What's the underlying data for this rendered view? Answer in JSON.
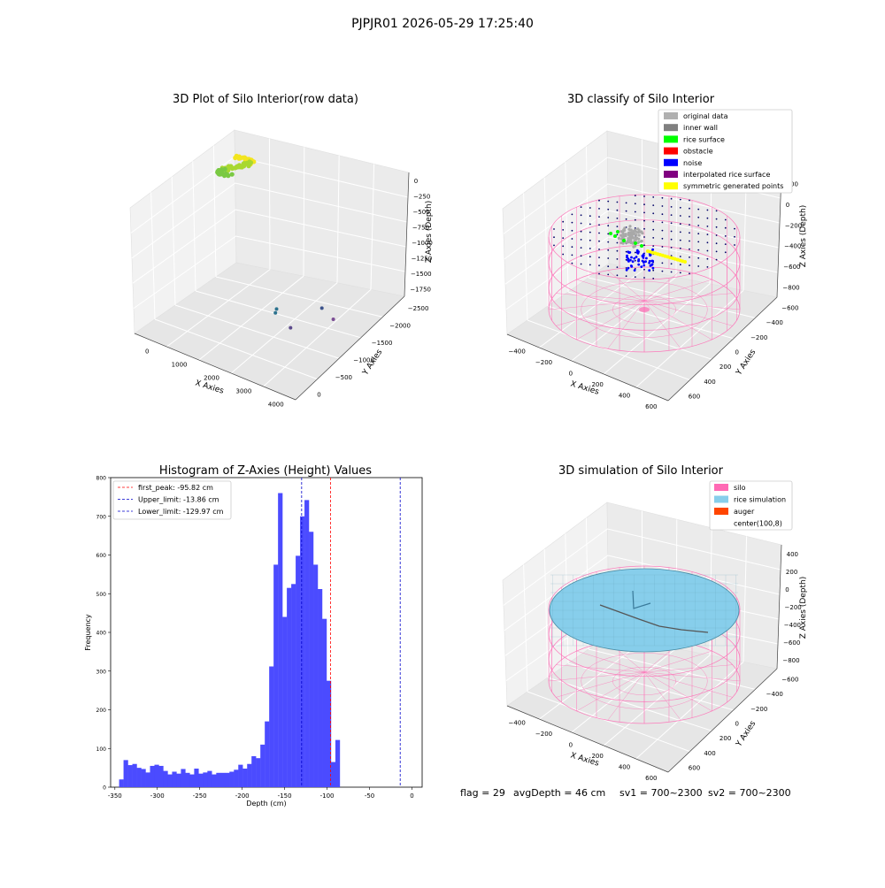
{
  "figure": {
    "suptitle": "PJPJR01 2026-05-29 17:25:40",
    "status": {
      "flag": "flag = 29",
      "avg_depth": "avgDepth = 46 cm",
      "sv1": "sv1 = 700~2300",
      "sv2": "sv2 = 700~2300"
    }
  },
  "colors": {
    "histogram_bar": "#4b4bff",
    "peak_line": "#ff0000",
    "limit_line": "#0000cc",
    "silo_wire": "#ff69b4",
    "rice_surface": "#87ceeb",
    "gray": "#aaaaaa",
    "pane": "#f2f2f2"
  },
  "chart_data": [
    {
      "type": "scatter",
      "title": "3D Plot of Silo Interior(row data)",
      "xlabel": "X Axies",
      "ylabel": "Y Axies",
      "zlabel": "Z Axies (Depth)",
      "x_ticks": [
        "0",
        "1000",
        "2000",
        "3000",
        "4000"
      ],
      "y_ticks": [
        "0",
        "−500",
        "−1000",
        "−1500",
        "−2000",
        "−2500"
      ],
      "z_ticks": [
        "0",
        "−250",
        "−500",
        "−750",
        "−1000",
        "−1250",
        "−1500",
        "−1750"
      ],
      "cluster": {
        "description": "dense point cloud",
        "colors": [
          "#f3e51f",
          "#a8d830",
          "#7ac943"
        ]
      },
      "outliers": [
        {
          "x": 2100,
          "y": -1300,
          "z": -1750,
          "color": "#2c728e"
        },
        {
          "x": 2080,
          "y": -1250,
          "z": -1720,
          "color": "#2c728e"
        },
        {
          "x": 2900,
          "y": -900,
          "z": -1750,
          "color": "#3b528b"
        },
        {
          "x": 2650,
          "y": -1450,
          "z": -1800,
          "color": "#5b4a8b"
        },
        {
          "x": 3300,
          "y": -1000,
          "z": -1800,
          "color": "#7b4d94"
        }
      ]
    },
    {
      "type": "scatter",
      "title": "3D classify of Silo Interior",
      "xlabel": "X Axies",
      "ylabel": "Y Axies",
      "zlabel": "Z Axies (Depth)",
      "x_ticks": [
        "−400",
        "−200",
        "0",
        "200",
        "400",
        "600"
      ],
      "y_ticks": [
        "600",
        "400",
        "200",
        "0",
        "−200",
        "−400",
        "−600"
      ],
      "z_ticks": [
        "200",
        "0",
        "−200",
        "−400",
        "−600",
        "−800"
      ],
      "legend_position": "top-right",
      "legend": [
        {
          "label": "original data",
          "color": "#b0b0b0"
        },
        {
          "label": "inner wall",
          "color": "#808080"
        },
        {
          "label": "rice surface",
          "color": "#00ff00"
        },
        {
          "label": "obstacle",
          "color": "#ff0000"
        },
        {
          "label": "noise",
          "color": "#0000ff"
        },
        {
          "label": "interpolated rice surface",
          "color": "#800080"
        },
        {
          "label": "symmetric generated points",
          "color": "#ffff00"
        }
      ]
    },
    {
      "type": "bar",
      "title": "Histogram of Z-Axies (Height) Values",
      "xlabel": "Depth (cm)",
      "ylabel": "Frequency",
      "xlim": [
        -355,
        12
      ],
      "ylim": [
        0,
        800
      ],
      "x_ticks": [
        -350,
        -300,
        -250,
        -200,
        -150,
        -100,
        -50,
        0
      ],
      "y_ticks": [
        0,
        100,
        200,
        300,
        400,
        500,
        600,
        700,
        800
      ],
      "bin_start": -345,
      "bin_width": 5.2,
      "values": [
        20,
        70,
        57,
        60,
        50,
        47,
        38,
        55,
        58,
        55,
        42,
        33,
        40,
        35,
        47,
        37,
        33,
        48,
        35,
        38,
        42,
        33,
        37,
        37,
        37,
        40,
        45,
        58,
        48,
        60,
        80,
        75,
        110,
        170,
        312,
        575,
        760,
        440,
        515,
        525,
        598,
        700,
        742,
        660,
        575,
        512,
        435,
        275,
        65,
        122
      ],
      "lines": [
        {
          "label": "first_peak: -95.82 cm",
          "x": -95.82,
          "color": "#ff0000"
        },
        {
          "label": "Upper_limit: -13.86 cm",
          "x": -13.86,
          "color": "#0000cc"
        },
        {
          "label": "Lower_limit: -129.97 cm",
          "x": -129.97,
          "color": "#0000cc"
        }
      ],
      "legend_position": "top-left"
    },
    {
      "type": "area",
      "title": "3D simulation of Silo Interior",
      "xlabel": "X Axies",
      "ylabel": "Y Axies",
      "zlabel": "Z Axies (Depth)",
      "x_ticks": [
        "−400",
        "−200",
        "0",
        "200",
        "400",
        "600"
      ],
      "y_ticks": [
        "600",
        "400",
        "200",
        "0",
        "−200",
        "−400",
        "−600"
      ],
      "z_ticks": [
        "400",
        "200",
        "0",
        "−200",
        "−400",
        "−600",
        "−800"
      ],
      "legend_position": "top-right",
      "legend": [
        {
          "label": "silo",
          "color": "#ff69b4"
        },
        {
          "label": "rice simulation",
          "color": "#87ceeb"
        },
        {
          "label": "auger",
          "color": "#ff4500"
        },
        {
          "label": "center(100,8)",
          "color": ""
        }
      ]
    }
  ]
}
